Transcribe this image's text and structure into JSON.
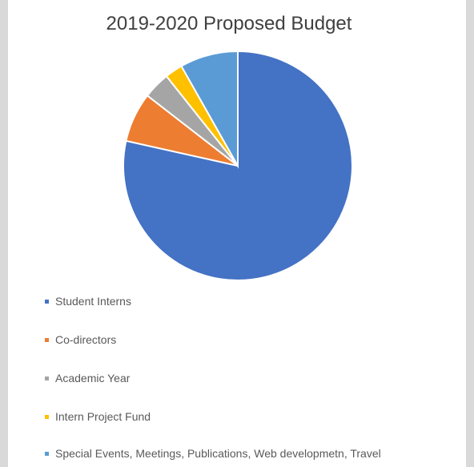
{
  "chart_data": {
    "type": "pie",
    "title": "2019-2020 Proposed Budget",
    "categories": [
      "Student Interns",
      "Co-directors",
      "Academic Year",
      "Intern Project Fund",
      "Special Events, Meetings, Publications, Web developmetn, Travel"
    ],
    "values": [
      78.5,
      7,
      3.8,
      2.5,
      8.2
    ],
    "colors": [
      "#4472c4",
      "#ed7d31",
      "#a5a5a5",
      "#ffc000",
      "#5b9bd5"
    ],
    "legend_position": "bottom",
    "start_angle_deg": 0,
    "direction": "clockwise"
  }
}
